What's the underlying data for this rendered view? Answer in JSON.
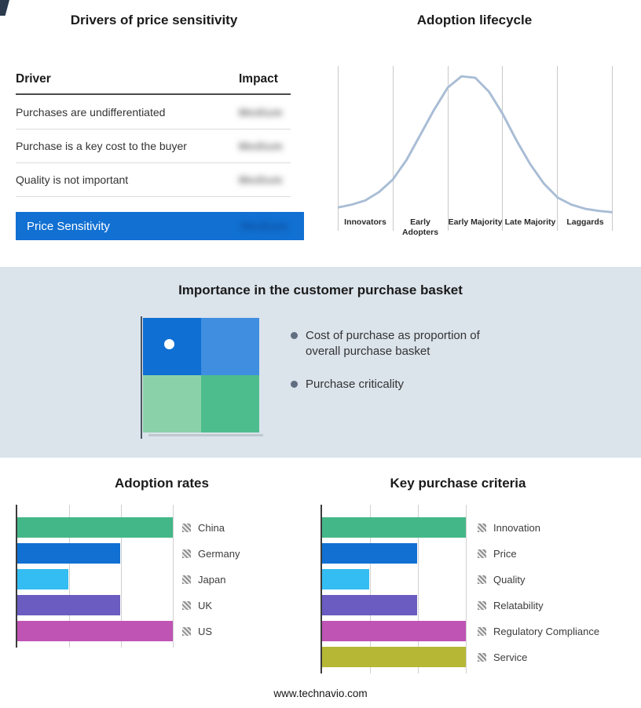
{
  "drivers": {
    "title": "Drivers of price sensitivity",
    "columns": {
      "driver": "Driver",
      "impact": "Impact"
    },
    "rows": [
      {
        "label": "Purchases are undifferentiated",
        "impact": "Medium"
      },
      {
        "label": "Purchase is a key cost to the buyer",
        "impact": "Medium"
      },
      {
        "label": "Quality is not important",
        "impact": "Medium"
      }
    ],
    "summary_row": {
      "label": "Price Sensitivity",
      "impact": "Medium",
      "bg": "#1170d2"
    }
  },
  "basket": {
    "title": "Importance in the customer purchase basket",
    "bullets": [
      "Cost of purchase as proportion of overall purchase basket",
      "Purchase criticality"
    ],
    "quadrant_colors": [
      "#0f6fd3",
      "#3f8ee0",
      "#8ad1a9",
      "#4ebd8d"
    ]
  },
  "footer": {
    "url": "www.technavio.com"
  },
  "chart_data": [
    {
      "id": "adoption-lifecycle",
      "type": "line",
      "title": "Adoption lifecycle",
      "categories": [
        "Innovators",
        "Early Adopters",
        "Early Majority",
        "Late Majority",
        "Laggards"
      ],
      "curve": "bell",
      "line_color": "#a9bdd5",
      "grid": "vertical-category-separators",
      "points": [
        [
          0,
          0.05
        ],
        [
          0.05,
          0.07
        ],
        [
          0.1,
          0.1
        ],
        [
          0.15,
          0.16
        ],
        [
          0.2,
          0.25
        ],
        [
          0.25,
          0.39
        ],
        [
          0.3,
          0.57
        ],
        [
          0.35,
          0.75
        ],
        [
          0.4,
          0.91
        ],
        [
          0.45,
          0.99
        ],
        [
          0.5,
          0.98
        ],
        [
          0.55,
          0.88
        ],
        [
          0.6,
          0.72
        ],
        [
          0.65,
          0.53
        ],
        [
          0.7,
          0.36
        ],
        [
          0.75,
          0.22
        ],
        [
          0.8,
          0.12
        ],
        [
          0.85,
          0.07
        ],
        [
          0.9,
          0.04
        ],
        [
          0.95,
          0.025
        ],
        [
          1,
          0.015
        ]
      ]
    },
    {
      "id": "adoption-rates",
      "type": "bar",
      "orientation": "horizontal",
      "title": "Adoption rates",
      "categories": [
        "China",
        "Germany",
        "Japan",
        "UK",
        "US"
      ],
      "values": [
        100,
        66,
        33,
        66,
        100
      ],
      "colors": [
        "#44b789",
        "#1170d2",
        "#33bdf2",
        "#6a5cc0",
        "#bf54b4"
      ],
      "xlim": [
        0,
        100
      ],
      "grid": "vertical",
      "legend_position": "right"
    },
    {
      "id": "key-purchase-criteria",
      "type": "bar",
      "orientation": "horizontal",
      "title": "Key purchase criteria",
      "categories": [
        "Innovation",
        "Price",
        "Quality",
        "Relatability",
        "Regulatory Compliance",
        "Service"
      ],
      "values": [
        100,
        66,
        33,
        66,
        100,
        100
      ],
      "colors": [
        "#44b789",
        "#1170d2",
        "#33bdf2",
        "#6a5cc0",
        "#bf54b4",
        "#b6b735"
      ],
      "xlim": [
        0,
        100
      ],
      "grid": "vertical",
      "legend_position": "right"
    }
  ]
}
